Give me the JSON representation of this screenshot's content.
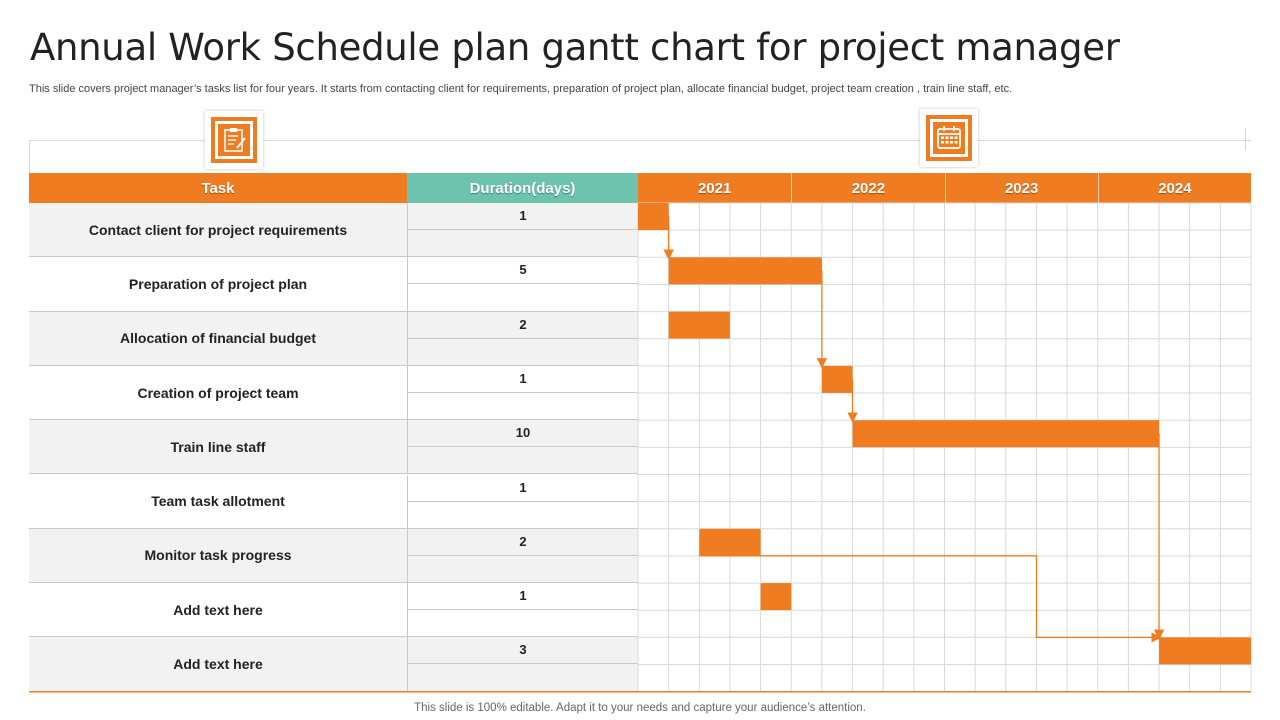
{
  "title": "Annual Work Schedule plan gantt chart for project manager",
  "subtitle": "This slide covers project manager’s tasks list for four years. It starts from contacting client for  requirements, preparation of project plan, allocate financial budget, project team creation ,  train line staff,  etc.",
  "footer": "This slide is 100% editable. Adapt it to your needs and capture your audience’s attention.",
  "icons": {
    "left": "clipboard-icon",
    "right": "calendar-icon"
  },
  "colors": {
    "accent": "#F07C22",
    "duration_header": "#6CC3AE",
    "alt_row": "#F2F2F2",
    "grid": "#D9D9D9"
  },
  "headers": {
    "task": "Task",
    "duration": "Duration(days)"
  },
  "chart_data": {
    "type": "gantt",
    "years": [
      "2021",
      "2022",
      "2023",
      "2024"
    ],
    "subdivisions_per_year": 5,
    "tasks": [
      {
        "name": "Contact client for project requirements",
        "duration": "1",
        "start": 0,
        "length": 1
      },
      {
        "name": "Preparation of project plan",
        "duration": "5",
        "start": 1,
        "length": 5
      },
      {
        "name": "Allocation  of financial budget",
        "duration": "2",
        "start": 1,
        "length": 2
      },
      {
        "name": "Creation of project team",
        "duration": "1",
        "start": 6,
        "length": 1
      },
      {
        "name": "Train line staff",
        "duration": "10",
        "start": 7,
        "length": 10
      },
      {
        "name": "Team task allotment",
        "duration": "1",
        "start": null,
        "length": 0
      },
      {
        "name": "Monitor task progress",
        "duration": "2",
        "start": 2,
        "length": 2
      },
      {
        "name": "Add  text here",
        "duration": "1",
        "start": 4,
        "length": 1
      },
      {
        "name": "Add  text here",
        "duration": "3",
        "start": 17,
        "length": 3
      }
    ],
    "dependencies": [
      {
        "from": 0,
        "to": 1
      },
      {
        "from": 1,
        "to": 3
      },
      {
        "from": 3,
        "to": 4
      },
      {
        "from": 4,
        "to": 8
      },
      {
        "from": 6,
        "to": 8
      }
    ]
  }
}
